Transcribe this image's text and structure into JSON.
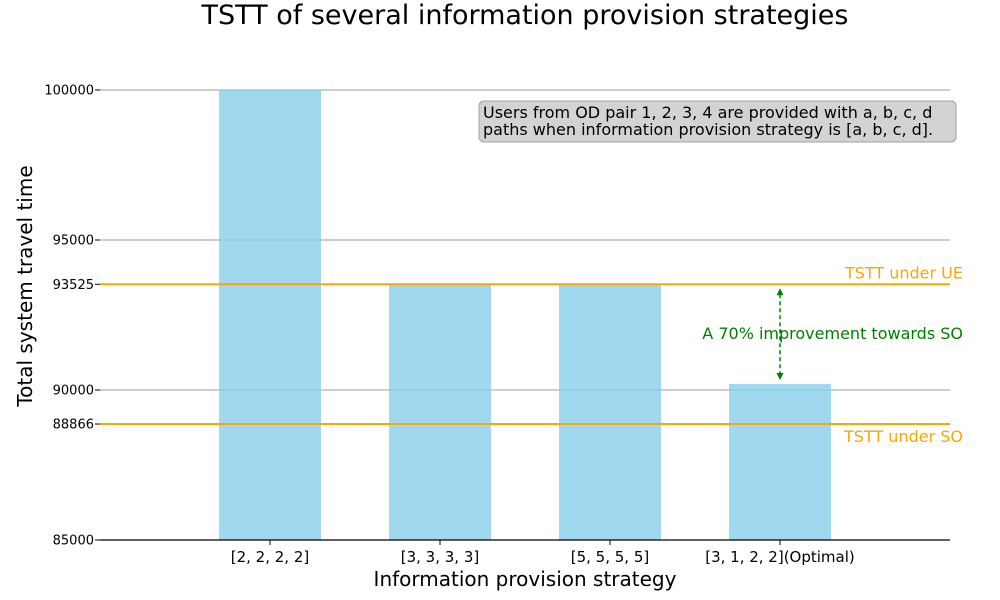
{
  "chart_data": {
    "type": "bar",
    "title": "TSTT of several information provision strategies",
    "xlabel": "Information provision strategy",
    "ylabel": "Total system travel time",
    "categories": [
      "[2, 2, 2, 2]",
      "[3, 3, 3, 3]",
      "[5, 5, 5, 5]",
      "[3, 1, 2, 2](Optimal)"
    ],
    "values": [
      100000,
      93525,
      93525,
      90200
    ],
    "bar_color": "#87CEEB",
    "ylim": [
      85000,
      101500
    ],
    "yticks": [
      85000,
      88866,
      90000,
      93525,
      95000,
      100000
    ],
    "grid_lines": [
      90000,
      95000,
      100000
    ],
    "reference_lines": [
      {
        "name": "TSTT under UE",
        "value": 93525,
        "color": "#FFA500"
      },
      {
        "name": "TSTT under SO",
        "value": 88866,
        "color": "#FFA500"
      }
    ],
    "annotation": {
      "text": "A 70% improvement towards SO",
      "category_index": 3,
      "from_value": 93525,
      "to_value": 90200,
      "color": "#008000"
    },
    "note": {
      "line1": "Users from OD pair 1, 2, 3, 4 are provided with a, b, c, d",
      "line2": "paths when information provision strategy is [a, b, c, d].",
      "position": "top-right"
    }
  }
}
